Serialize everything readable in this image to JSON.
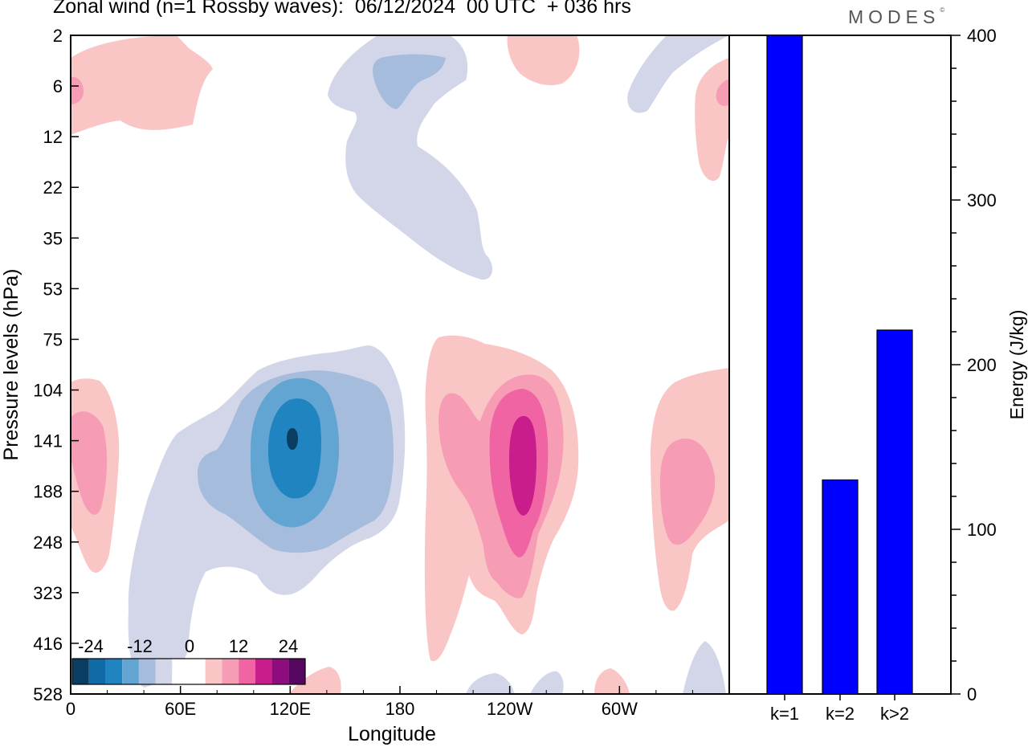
{
  "title": "Zonal wind (n=1 Rossby waves):  06/12/2024  00 UTC  + 036 hrs",
  "logo": "MODES",
  "logo_mark": "©",
  "colors": {
    "bar_fill": "#0000ff",
    "neg": [
      "#0a3d62",
      "#106aa6",
      "#1f84c0",
      "#62a5d2",
      "#a5bcdc",
      "#d3d6e8"
    ],
    "pos": [
      "#f9c6c5",
      "#f69cb5",
      "#f064a4",
      "#c81d8a",
      "#8e0d7e",
      "#55065f"
    ]
  },
  "chart_data": [
    {
      "type": "heatmap",
      "title": "Zonal wind (n=1 Rossby waves):  06/12/2024  00 UTC  + 036 hrs",
      "xlabel": "Longitude",
      "ylabel": "Pressure levels (hPa)",
      "x_ticks": [
        "0",
        "60E",
        "120E",
        "180",
        "120W",
        "60W"
      ],
      "x_tick_lons": [
        0,
        60,
        120,
        180,
        240,
        300
      ],
      "x_range_deg": [
        0,
        360
      ],
      "y_levels": [
        "2",
        "6",
        "12",
        "22",
        "35",
        "53",
        "75",
        "104",
        "141",
        "188",
        "248",
        "323",
        "416",
        "528"
      ],
      "colorbar_labels": [
        "-24",
        "-12",
        "0",
        "12",
        "24"
      ],
      "colorbar_levels": [
        -30,
        -24,
        -18,
        -12,
        -6,
        -3,
        3,
        6,
        12,
        18,
        24,
        30
      ],
      "features": [
        {
          "lon": 120,
          "level": "141",
          "value": -25
        },
        {
          "lon": 248,
          "level": "141",
          "value": 20
        },
        {
          "lon": 15,
          "level": "141",
          "value": 8
        },
        {
          "lon": 330,
          "level": "141",
          "value": 8
        },
        {
          "lon": 180,
          "level": "6",
          "value": -8
        },
        {
          "lon": 310,
          "level": "6",
          "value": -3
        },
        {
          "lon": 0,
          "level": "6",
          "value": 5
        },
        {
          "lon": 360,
          "level": "6",
          "value": 5
        }
      ]
    },
    {
      "type": "bar",
      "categories": [
        "k=1",
        "k=2",
        "k>2"
      ],
      "values": [
        400,
        130,
        221
      ],
      "ylabel": "Energy (J/kg)",
      "ylim": [
        0,
        400
      ],
      "y_ticks": [
        "0",
        "100",
        "200",
        "300",
        "400"
      ]
    }
  ]
}
